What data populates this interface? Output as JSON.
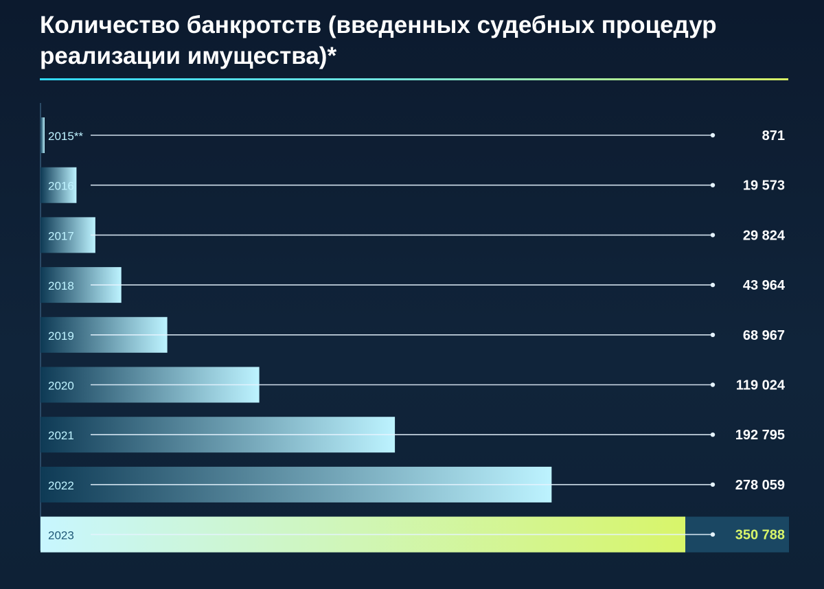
{
  "title": "Количество банкротств (введенных судебных процедур реализации имущества)*",
  "colors": {
    "background": "#0e1f33",
    "bar_start": "#0e3a55",
    "bar_end": "#bdf3ff",
    "highlight_start": "#c8f6ff",
    "highlight_end": "#d8f56a",
    "highlight_value": "#d8f56a",
    "line": "#e6f4ff",
    "year_text": "#bff3ff",
    "value_text": "#ffffff"
  },
  "chart_data": {
    "type": "bar",
    "orientation": "horizontal",
    "title": "Количество банкротств (введенных судебных процедур реализации имущества)*",
    "categories": [
      "2015**",
      "2016",
      "2017",
      "2018",
      "2019",
      "2020",
      "2021",
      "2022",
      "2023"
    ],
    "values": [
      871,
      19573,
      29824,
      43964,
      68967,
      119024,
      192795,
      278059,
      350788
    ],
    "value_labels": [
      "871",
      "19 573",
      "29 824",
      "43 964",
      "68 967",
      "119 024",
      "192 795",
      "278 059",
      "350 788"
    ],
    "highlighted_category": "2023",
    "xlim": [
      0,
      350788
    ],
    "grid": false,
    "legend": "none"
  }
}
